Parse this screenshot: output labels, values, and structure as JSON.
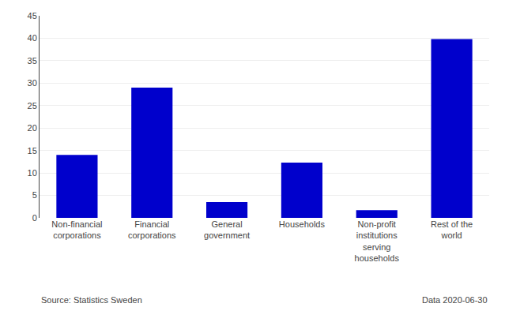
{
  "chart_data": {
    "type": "bar",
    "categories": [
      "Non-financial\ncorporations",
      "Financial\ncorporations",
      "General\ngovernment",
      "Households",
      "Non-profit\ninstitutions\nserving\nhouseholds",
      "Rest of the\nworld"
    ],
    "values": [
      14.0,
      29.0,
      3.5,
      12.3,
      1.7,
      39.8
    ],
    "color": "#0000cc",
    "ylim": [
      0,
      45
    ],
    "yticks": [
      0,
      5,
      10,
      15,
      20,
      25,
      30,
      35,
      40,
      45
    ],
    "grid": true,
    "annotations": [
      "Source: Statistics Sweden",
      "Data 2020-06-30"
    ]
  }
}
